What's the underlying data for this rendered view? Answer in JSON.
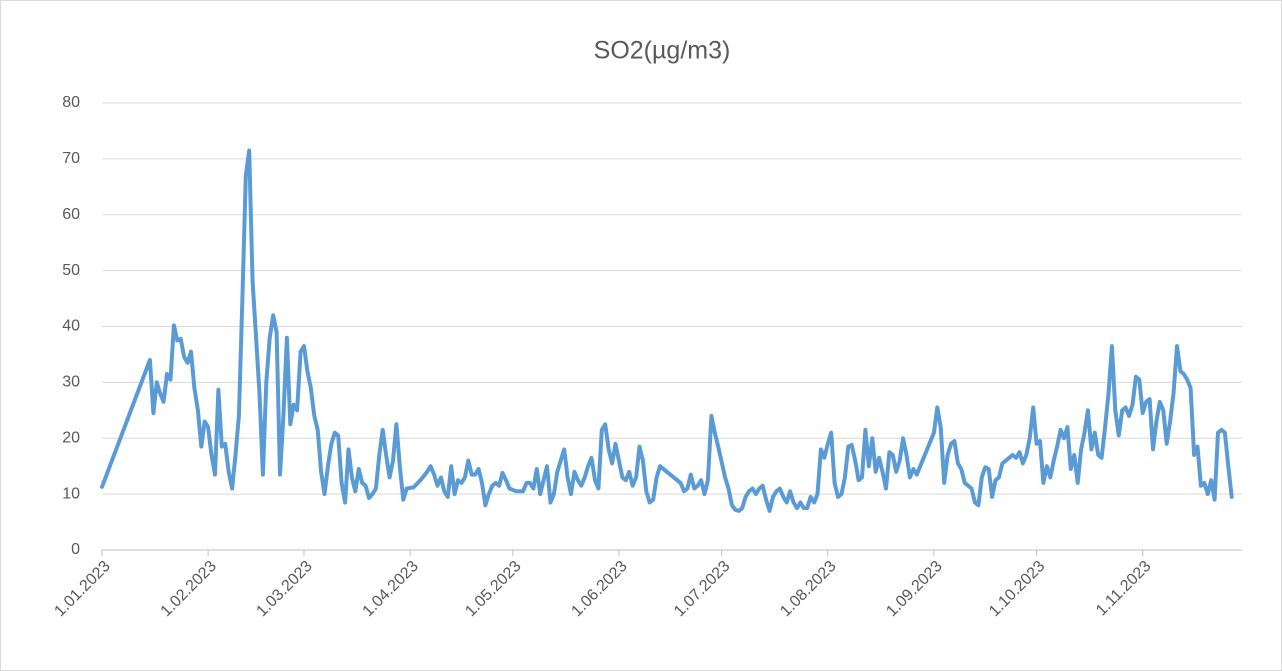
{
  "chart_data": {
    "type": "line",
    "title": "SO2(µg/m3)",
    "x": [
      "1.01.2023",
      "15.01.2023",
      "16.01.2023",
      "17.01.2023",
      "18.01.2023",
      "19.01.2023",
      "20.01.2023",
      "21.01.2023",
      "22.01.2023",
      "23.01.2023",
      "24.01.2023",
      "25.01.2023",
      "26.01.2023",
      "27.01.2023",
      "28.01.2023",
      "29.01.2023",
      "30.01.2023",
      "31.01.2023",
      "1.02.2023",
      "2.02.2023",
      "3.02.2023",
      "4.02.2023",
      "5.02.2023",
      "6.02.2023",
      "7.02.2023",
      "8.02.2023",
      "9.02.2023",
      "10.02.2023",
      "11.02.2023",
      "12.02.2023",
      "13.02.2023",
      "14.02.2023",
      "15.02.2023",
      "16.02.2023",
      "17.02.2023",
      "18.02.2023",
      "19.02.2023",
      "20.02.2023",
      "21.02.2023",
      "22.02.2023",
      "23.02.2023",
      "24.02.2023",
      "25.02.2023",
      "26.02.2023",
      "27.02.2023",
      "28.02.2023",
      "1.03.2023",
      "2.03.2023",
      "3.03.2023",
      "4.03.2023",
      "5.03.2023",
      "6.03.2023",
      "7.03.2023",
      "8.03.2023",
      "9.03.2023",
      "10.03.2023",
      "11.03.2023",
      "12.03.2023",
      "13.03.2023",
      "14.03.2023",
      "15.03.2023",
      "16.03.2023",
      "17.03.2023",
      "18.03.2023",
      "19.03.2023",
      "20.03.2023",
      "21.03.2023",
      "22.03.2023",
      "23.03.2023",
      "24.03.2023",
      "25.03.2023",
      "26.03.2023",
      "27.03.2023",
      "28.03.2023",
      "29.03.2023",
      "30.03.2023",
      "31.03.2023",
      "2.04.2023",
      "4.04.2023",
      "6.04.2023",
      "7.04.2023",
      "8.04.2023",
      "9.04.2023",
      "10.04.2023",
      "11.04.2023",
      "12.04.2023",
      "13.04.2023",
      "14.04.2023",
      "15.04.2023",
      "16.04.2023",
      "17.04.2023",
      "18.04.2023",
      "19.04.2023",
      "20.04.2023",
      "21.04.2023",
      "22.04.2023",
      "23.04.2023",
      "24.04.2023",
      "25.04.2023",
      "26.04.2023",
      "27.04.2023",
      "28.04.2023",
      "29.04.2023",
      "30.04.2023",
      "2.05.2023",
      "4.05.2023",
      "5.05.2023",
      "6.05.2023",
      "7.05.2023",
      "8.05.2023",
      "9.05.2023",
      "10.05.2023",
      "11.05.2023",
      "12.05.2023",
      "13.05.2023",
      "14.05.2023",
      "15.05.2023",
      "16.05.2023",
      "17.05.2023",
      "18.05.2023",
      "19.05.2023",
      "20.05.2023",
      "21.05.2023",
      "22.05.2023",
      "23.05.2023",
      "24.05.2023",
      "25.05.2023",
      "26.05.2023",
      "27.05.2023",
      "28.05.2023",
      "29.05.2023",
      "30.05.2023",
      "31.05.2023",
      "1.06.2023",
      "2.06.2023",
      "3.06.2023",
      "4.06.2023",
      "5.06.2023",
      "6.06.2023",
      "7.06.2023",
      "8.06.2023",
      "9.06.2023",
      "10.06.2023",
      "11.06.2023",
      "12.06.2023",
      "13.06.2023",
      "15.06.2023",
      "17.06.2023",
      "19.06.2023",
      "20.06.2023",
      "21.06.2023",
      "22.06.2023",
      "23.06.2023",
      "24.06.2023",
      "25.06.2023",
      "26.06.2023",
      "27.06.2023",
      "28.06.2023",
      "29.06.2023",
      "30.06.2023",
      "2.07.2023",
      "3.07.2023",
      "4.07.2023",
      "5.07.2023",
      "6.07.2023",
      "7.07.2023",
      "8.07.2023",
      "9.07.2023",
      "10.07.2023",
      "11.07.2023",
      "12.07.2023",
      "13.07.2023",
      "14.07.2023",
      "15.07.2023",
      "16.07.2023",
      "17.07.2023",
      "18.07.2023",
      "19.07.2023",
      "20.07.2023",
      "21.07.2023",
      "22.07.2023",
      "23.07.2023",
      "24.07.2023",
      "25.07.2023",
      "26.07.2023",
      "27.07.2023",
      "28.07.2023",
      "29.07.2023",
      "30.07.2023",
      "31.07.2023",
      "1.08.2023",
      "2.08.2023",
      "3.08.2023",
      "4.08.2023",
      "5.08.2023",
      "6.08.2023",
      "7.08.2023",
      "8.08.2023",
      "9.08.2023",
      "10.08.2023",
      "11.08.2023",
      "12.08.2023",
      "13.08.2023",
      "14.08.2023",
      "15.08.2023",
      "16.08.2023",
      "17.08.2023",
      "18.08.2023",
      "19.08.2023",
      "20.08.2023",
      "21.08.2023",
      "22.08.2023",
      "23.08.2023",
      "24.08.2023",
      "25.08.2023",
      "26.08.2023",
      "27.08.2023",
      "1.09.2023",
      "2.09.2023",
      "3.09.2023",
      "4.09.2023",
      "5.09.2023",
      "6.09.2023",
      "7.09.2023",
      "8.09.2023",
      "9.09.2023",
      "10.09.2023",
      "11.09.2023",
      "12.09.2023",
      "13.09.2023",
      "14.09.2023",
      "15.09.2023",
      "16.09.2023",
      "17.09.2023",
      "18.09.2023",
      "19.09.2023",
      "20.09.2023",
      "21.09.2023",
      "23.09.2023",
      "24.09.2023",
      "25.09.2023",
      "26.09.2023",
      "27.09.2023",
      "28.09.2023",
      "29.09.2023",
      "30.09.2023",
      "1.10.2023",
      "2.10.2023",
      "3.10.2023",
      "4.10.2023",
      "5.10.2023",
      "6.10.2023",
      "7.10.2023",
      "8.10.2023",
      "9.10.2023",
      "10.10.2023",
      "11.10.2023",
      "12.10.2023",
      "13.10.2023",
      "14.10.2023",
      "15.10.2023",
      "16.10.2023",
      "17.10.2023",
      "18.10.2023",
      "19.10.2023",
      "20.10.2023",
      "21.10.2023",
      "22.10.2023",
      "23.10.2023",
      "24.10.2023",
      "25.10.2023",
      "26.10.2023",
      "27.10.2023",
      "28.10.2023",
      "29.10.2023",
      "30.10.2023",
      "31.10.2023",
      "1.11.2023",
      "2.11.2023",
      "3.11.2023",
      "4.11.2023",
      "5.11.2023",
      "6.11.2023",
      "7.11.2023",
      "8.11.2023",
      "9.11.2023",
      "10.11.2023",
      "11.11.2023",
      "12.11.2023",
      "13.11.2023",
      "14.11.2023",
      "15.11.2023",
      "16.11.2023",
      "17.11.2023",
      "18.11.2023",
      "19.11.2023",
      "20.11.2023",
      "21.11.2023",
      "22.11.2023",
      "23.11.2023",
      "24.11.2023",
      "25.11.2023",
      "26.11.2023",
      "27.11.2023"
    ],
    "series": [
      {
        "color": "#5b9bd5",
        "values": [
          11.3,
          34,
          24.5,
          30,
          28,
          26.5,
          31.5,
          30.5,
          40.2,
          37.5,
          37.8,
          34.5,
          33.5,
          35.5,
          29,
          25,
          18.5,
          23,
          22,
          17,
          13.5,
          28.7,
          18.5,
          19,
          14,
          11,
          17,
          24,
          45,
          67,
          71.5,
          48,
          38,
          28,
          13.5,
          30,
          38,
          42,
          39,
          13.5,
          24,
          38,
          22.5,
          26,
          25,
          35.5,
          36.5,
          32,
          29,
          24,
          21.5,
          14,
          10,
          15,
          19,
          21,
          20.5,
          12,
          8.5,
          18,
          13,
          10.5,
          14.5,
          12,
          11.5,
          9.3,
          10,
          11,
          17,
          21.5,
          17,
          13,
          16,
          22.5,
          15,
          9,
          11,
          11.2,
          12.5,
          14,
          15,
          13.5,
          11.5,
          13,
          10.5,
          9.5,
          15,
          10,
          12.5,
          12,
          13,
          16,
          13.5,
          13.5,
          14.5,
          12,
          8,
          10,
          11.5,
          12,
          11.5,
          13.8,
          12.5,
          11,
          10.5,
          10.5,
          12,
          12,
          11,
          14.5,
          10,
          12.5,
          15,
          8.5,
          10,
          14,
          16,
          18,
          13,
          10,
          14,
          12.5,
          11.5,
          13,
          15,
          16.5,
          12.5,
          11,
          21.5,
          22.5,
          18,
          15.5,
          19,
          16,
          13,
          12.5,
          14,
          11.5,
          13,
          18.5,
          16,
          10.5,
          8.5,
          9,
          13,
          15,
          14,
          13,
          12,
          10.5,
          11,
          13.5,
          11,
          11.5,
          12.5,
          10,
          12.5,
          24,
          21,
          18.5,
          13,
          11,
          8,
          7.2,
          7,
          7.5,
          9.5,
          10.5,
          11,
          10,
          11,
          11.5,
          9,
          7,
          9.5,
          10.5,
          11,
          9.5,
          8.5,
          10.5,
          8.5,
          7.5,
          8.5,
          7.5,
          7.5,
          9.5,
          8.5,
          10,
          18,
          16.5,
          19,
          21,
          12,
          9.5,
          10,
          13,
          18.5,
          18.8,
          16,
          12.5,
          13,
          21.5,
          15,
          20,
          14,
          16.5,
          14,
          11,
          17.5,
          17,
          14,
          16,
          20,
          17,
          13,
          14.5,
          13.5,
          21,
          25.5,
          22,
          12,
          17,
          19,
          19.5,
          15.5,
          14.5,
          12,
          11.5,
          11,
          8.5,
          8,
          13,
          14.8,
          14.5,
          9.5,
          12.5,
          13,
          15.5,
          16.5,
          17,
          16.5,
          17.5,
          15.5,
          17,
          20,
          25.5,
          19,
          19.5,
          12,
          15,
          13,
          16,
          18.5,
          21.5,
          20,
          22,
          14.5,
          17,
          12,
          18,
          21,
          25,
          18,
          21,
          17,
          16.5,
          22,
          28,
          36.5,
          25,
          20.5,
          25,
          25.5,
          24,
          26,
          31,
          30.5,
          24.5,
          26.5,
          27,
          18,
          23,
          26.5,
          25,
          19,
          23,
          28,
          36.5,
          32,
          31.5,
          30.5,
          29,
          17,
          18.5,
          11.5,
          12,
          10,
          12.5,
          9,
          21,
          21.5,
          21,
          15,
          9.5
        ]
      }
    ],
    "xlim": [
      "1.01.2023",
      "30.11.2023"
    ],
    "xticks": [
      "1.01.2023",
      "1.02.2023",
      "1.03.2023",
      "1.04.2023",
      "1.05.2023",
      "1.06.2023",
      "1.07.2023",
      "1.08.2023",
      "1.09.2023",
      "1.10.2023",
      "1.11.2023"
    ],
    "ylim": [
      0,
      80
    ],
    "yticks": [
      0,
      10,
      20,
      30,
      40,
      50,
      60,
      70,
      80
    ],
    "grid": true
  }
}
